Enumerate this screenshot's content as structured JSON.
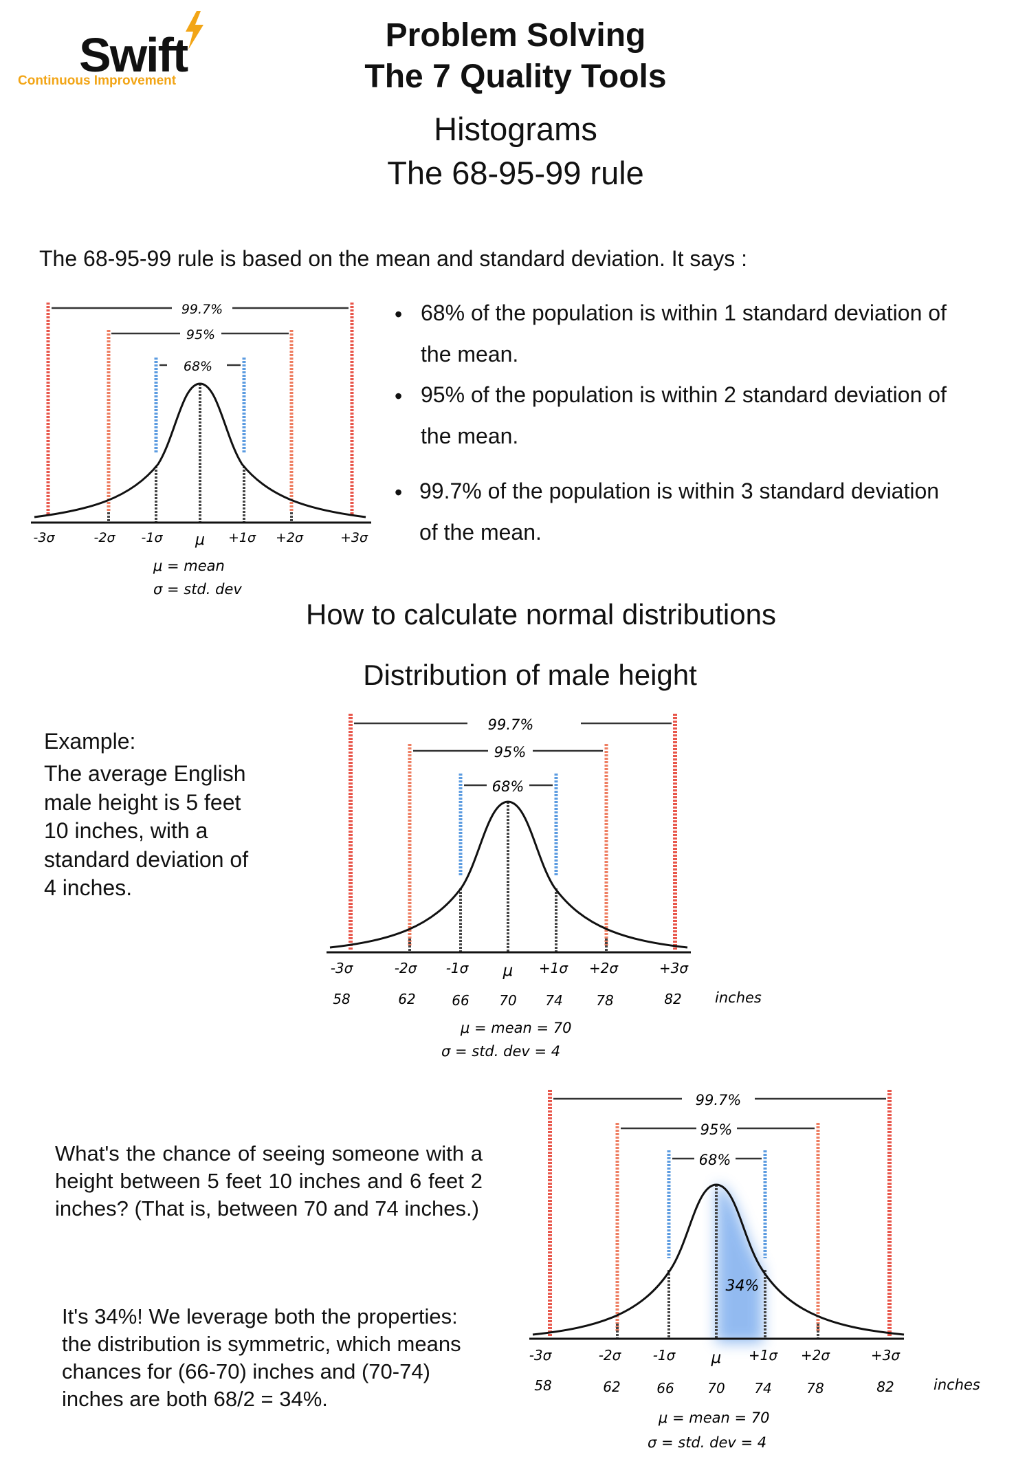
{
  "logo": {
    "name": "Swift",
    "tagline": "Continuous Improvement",
    "color": "#f2a516"
  },
  "header": {
    "title_line1": "Problem Solving",
    "title_line2": "The 7 Quality Tools",
    "subtitle_line1": "Histograms",
    "subtitle_line2": "The 68-95-99 rule"
  },
  "intro": "The 68-95-99 rule is based on the mean and standard deviation. It says :",
  "bullets": [
    "68% of the population is within 1 standard deviation of the mean.",
    "95% of the population is within 2 standard deviation of the mean.",
    "99.7% of the population is within 3 standard deviation of the mean."
  ],
  "section_title": "How to calculate normal distributions",
  "section_subtitle": "Distribution of male height",
  "example": {
    "head": "Example:",
    "body": "The average English  male height is 5 feet 10 inches, with a standard deviation of 4 inches."
  },
  "question": "What's the chance of seeing someone with a  height between 5 feet 10 inches and 6 feet 2  inches? (That is, between 70 and 74 inches.)",
  "answer": "It's 34%! We leverage both the properties: the distribution is symmetric, which means chances for (66-70) inches and (70-74)  inches are both 68/2 = 34%.",
  "diagram": {
    "pct_997": "99.7%",
    "pct_95": "95%",
    "pct_68": "68%",
    "sigma_ticks": [
      "-3σ",
      "-2σ",
      "-1σ",
      "μ",
      "+1σ",
      "+2σ",
      "+3σ"
    ],
    "legend_generic": [
      "μ = mean",
      "σ = std. dev"
    ],
    "inches_ticks": [
      "58",
      "62",
      "66",
      "70",
      "74",
      "78",
      "82"
    ],
    "unit": "inches",
    "legend_height": [
      "μ = mean = 70",
      "σ = std. dev = 4"
    ],
    "shaded_label": "34%",
    "colors": {
      "red": "#e8564a",
      "orange": "#ee7d60",
      "blue": "#5b9be0",
      "shade": "#6ea4ec",
      "dark": "#222222"
    }
  }
}
